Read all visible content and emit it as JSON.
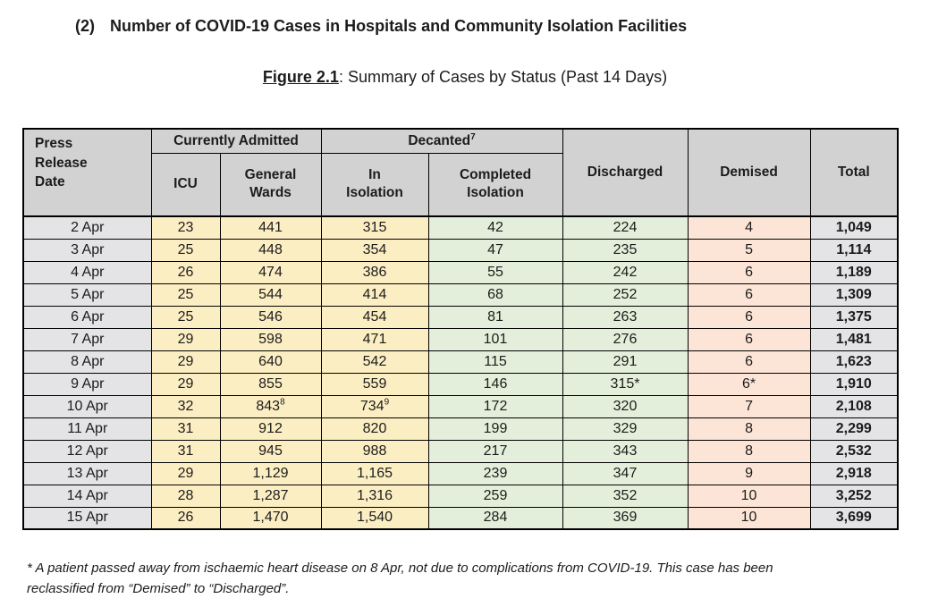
{
  "page": {
    "heading_number": "(2)",
    "heading_title": "Number of COVID-19 Cases in Hospitals and Community Isolation Facilities",
    "figure_label": "Figure 2.1",
    "figure_caption_rest": ": Summary of Cases by Status (Past 14 Days)",
    "footnote": "* A patient passed away from ischaemic heart disease on 8 Apr, not due to complications from COVID-19. This case has been\nreclassified from “Demised” to “Discharged”."
  },
  "colors": {
    "header_fill": "#d2d2d2",
    "date_fill": "#e4e4e6",
    "admitted_fill": "#fceec3",
    "decanted_fill": "#e3efda",
    "demised_fill": "#fce4d6",
    "total_fill": "#e4e4e6",
    "border": "#000000",
    "text": "#1c1c1c"
  },
  "table": {
    "header": {
      "press_release_date": "Press\nRelease\nDate",
      "currently_admitted": "Currently Admitted",
      "decanted": "Decanted",
      "decanted_sup": "7",
      "icu": "ICU",
      "general_wards": "General\nWards",
      "in_isolation": "In\nIsolation",
      "completed_isolation": "Completed\nIsolation",
      "discharged": "Discharged",
      "demised": "Demised",
      "total": "Total"
    },
    "columns": [
      {
        "key": "date",
        "name": "cell-press-release-date",
        "class": "c-date"
      },
      {
        "key": "icu",
        "name": "cell-icu",
        "class": "c-yellow"
      },
      {
        "key": "general_wards",
        "name": "cell-general-wards",
        "class": "c-yellow"
      },
      {
        "key": "in_isolation",
        "name": "cell-in-isolation",
        "class": "c-yellow"
      },
      {
        "key": "completed_isolation",
        "name": "cell-completed-isolation",
        "class": "c-green"
      },
      {
        "key": "discharged",
        "name": "cell-discharged",
        "class": "c-green"
      },
      {
        "key": "demised",
        "name": "cell-demised",
        "class": "c-pink"
      },
      {
        "key": "total",
        "name": "cell-total",
        "class": "c-total"
      }
    ],
    "rows": [
      [
        "2 Apr",
        "23",
        "441",
        "315",
        "42",
        "224",
        "4",
        "1,049"
      ],
      [
        "3 Apr",
        "25",
        "448",
        "354",
        "47",
        "235",
        "5",
        "1,114"
      ],
      [
        "4 Apr",
        "26",
        "474",
        "386",
        "55",
        "242",
        "6",
        "1,189"
      ],
      [
        "5 Apr",
        "25",
        "544",
        "414",
        "68",
        "252",
        "6",
        "1,309"
      ],
      [
        "6 Apr",
        "25",
        "546",
        "454",
        "81",
        "263",
        "6",
        "1,375"
      ],
      [
        "7 Apr",
        "29",
        "598",
        "471",
        "101",
        "276",
        "6",
        "1,481"
      ],
      [
        "8 Apr",
        "29",
        "640",
        "542",
        "115",
        "291",
        "6",
        "1,623"
      ],
      [
        "9 Apr",
        "29",
        "855",
        "559",
        "146",
        "315*",
        "6*",
        "1,910"
      ],
      [
        "10 Apr",
        "32",
        "843^8",
        "734^9",
        "172",
        "320",
        "7",
        "2,108"
      ],
      [
        "11 Apr",
        "31",
        "912",
        "820",
        "199",
        "329",
        "8",
        "2,299"
      ],
      [
        "12 Apr",
        "31",
        "945",
        "988",
        "217",
        "343",
        "8",
        "2,532"
      ],
      [
        "13 Apr",
        "29",
        "1,129",
        "1,165",
        "239",
        "347",
        "9",
        "2,918"
      ],
      [
        "14 Apr",
        "28",
        "1,287",
        "1,316",
        "259",
        "352",
        "10",
        "3,252"
      ],
      [
        "15 Apr",
        "26",
        "1,470",
        "1,540",
        "284",
        "369",
        "10",
        "3,699"
      ]
    ]
  }
}
